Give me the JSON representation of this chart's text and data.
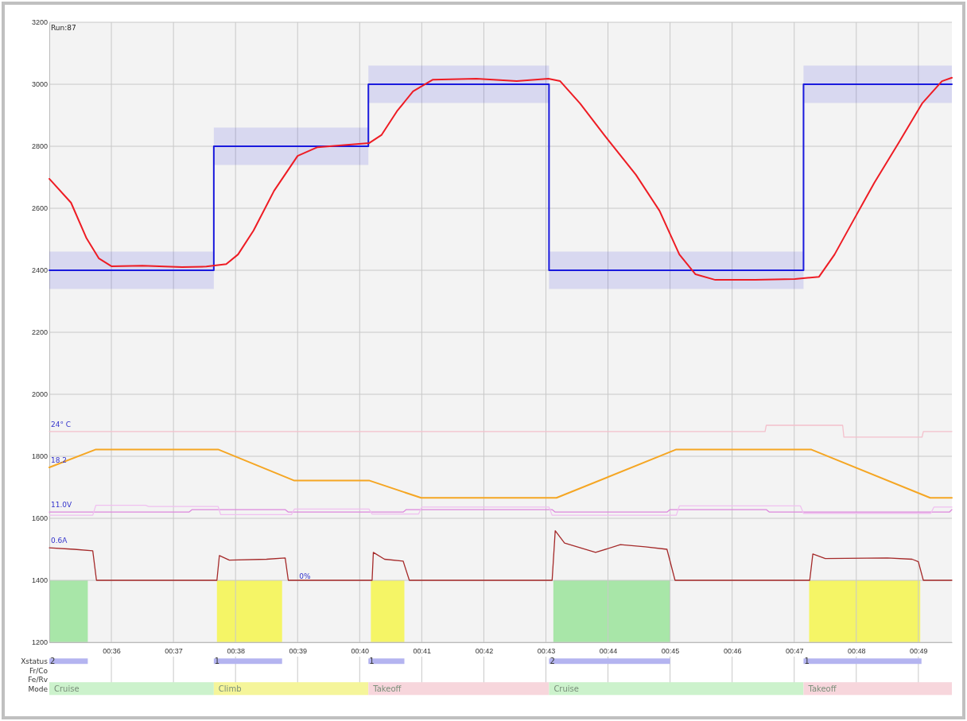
{
  "chart_data": [
    {
      "type": "line",
      "xlim": [
        35,
        49.54
      ],
      "xticks": [
        {
          "value": 36,
          "label": "00:36"
        },
        {
          "value": 37,
          "label": "00:37"
        },
        {
          "value": 38,
          "label": "00:38"
        },
        {
          "value": 39,
          "label": "00:39"
        },
        {
          "value": 40,
          "label": "00:40"
        },
        {
          "value": 41,
          "label": "00:41"
        },
        {
          "value": 42,
          "label": "00:42"
        },
        {
          "value": 43,
          "label": "00:43"
        },
        {
          "value": 44,
          "label": "00:44"
        },
        {
          "value": 45,
          "label": "00:45"
        },
        {
          "value": 46,
          "label": "00:46"
        },
        {
          "value": 47,
          "label": "00:47"
        },
        {
          "value": 48,
          "label": "00:48"
        },
        {
          "value": 49,
          "label": "00:49"
        }
      ],
      "ylim": [
        1200,
        3200
      ],
      "yticks": [
        1200,
        1400,
        1600,
        1800,
        2000,
        2200,
        2400,
        2600,
        2800,
        3000,
        3200
      ],
      "grid": true,
      "series": [
        {
          "type": "step",
          "color": "#1a1add",
          "x": [
            35,
            37.65,
            40.14,
            43.05,
            47.15,
            49.54
          ],
          "values": [
            2400,
            2800,
            3000,
            2400,
            3000,
            3000
          ],
          "lower": [
            2340,
            2740,
            2940,
            2340,
            2940,
            2940
          ],
          "upper": [
            2460,
            2860,
            3060,
            2460,
            3060,
            3060
          ]
        },
        {
          "color": "#ee1c24",
          "x": [
            35.0,
            35.35,
            35.6,
            35.8,
            36.0,
            36.5,
            37.14,
            37.53,
            37.85,
            38.04,
            38.29,
            38.62,
            39.0,
            39.32,
            39.83,
            40.15,
            40.35,
            40.6,
            40.86,
            41.18,
            41.88,
            42.53,
            43.04,
            43.23,
            43.55,
            43.94,
            44.45,
            44.83,
            45.15,
            45.41,
            45.73,
            46.37,
            47.01,
            47.4,
            47.65,
            47.97,
            48.29,
            48.68,
            49.06,
            49.38,
            49.54
          ],
          "values": [
            2695,
            2618,
            2503,
            2438,
            2413,
            2415,
            2410,
            2412,
            2420,
            2451,
            2528,
            2656,
            2769,
            2797,
            2805,
            2810,
            2836,
            2913,
            2977,
            3015,
            3018,
            3010,
            3018,
            3010,
            2938,
            2836,
            2708,
            2592,
            2451,
            2387,
            2369,
            2369,
            2372,
            2379,
            2451,
            2567,
            2682,
            2810,
            2938,
            3010,
            3021
          ]
        },
        {
          "name": "24° C",
          "color": "#f4c0cc",
          "x": [
            35,
            46.53,
            46.55,
            47.78,
            47.8,
            49.06,
            49.08,
            49.54
          ],
          "values": [
            1880,
            1880,
            1900,
            1900,
            1862,
            1862,
            1880,
            1880
          ]
        },
        {
          "name": "18.2",
          "color": "#f5a623",
          "x": [
            35,
            35.75,
            37.72,
            38.94,
            40.15,
            40.99,
            43.17,
            45.1,
            47.27,
            49.19,
            49.54
          ],
          "values": [
            1764,
            1822,
            1822,
            1722,
            1722,
            1666,
            1666,
            1822,
            1822,
            1666,
            1666
          ]
        },
        {
          "name": "11.0V",
          "color": "#dd88dd",
          "x": [
            35,
            37.25,
            37.3,
            38.8,
            38.85,
            40.7,
            40.75,
            43.1,
            43.15,
            44.95,
            45.0,
            46.55,
            46.6,
            49.5,
            49.54
          ],
          "values": [
            1620,
            1620,
            1628,
            1628,
            1620,
            1620,
            1628,
            1628,
            1620,
            1620,
            1628,
            1628,
            1620,
            1620,
            1628
          ]
        },
        {
          "color": "#f0c0f0",
          "x": [
            35,
            35.7,
            35.75,
            36.55,
            36.6,
            37.72,
            37.76,
            38.9,
            38.95,
            40.15,
            40.2,
            40.95,
            41.0,
            43.05,
            43.1,
            45.1,
            45.15,
            47.1,
            47.15,
            49.2,
            49.25,
            49.54
          ],
          "values": [
            1610,
            1610,
            1642,
            1642,
            1638,
            1638,
            1612,
            1612,
            1630,
            1630,
            1614,
            1614,
            1636,
            1636,
            1610,
            1610,
            1640,
            1640,
            1616,
            1616,
            1636,
            1636
          ]
        },
        {
          "name": "0.6A",
          "color": "#a52a2a",
          "x": [
            35,
            35.4,
            35.7,
            35.76,
            37.7,
            37.74,
            37.9,
            38.5,
            38.8,
            38.85,
            40.2,
            40.22,
            40.4,
            40.7,
            40.8,
            43.1,
            43.15,
            43.3,
            43.8,
            44.2,
            44.6,
            44.95,
            45.08,
            47.25,
            47.3,
            47.5,
            48.5,
            48.9,
            49.0,
            49.08,
            49.54
          ],
          "values": [
            1505,
            1500,
            1495,
            1400,
            1400,
            1480,
            1465,
            1468,
            1472,
            1400,
            1400,
            1490,
            1468,
            1462,
            1400,
            1400,
            1560,
            1520,
            1490,
            1515,
            1508,
            1500,
            1400,
            1400,
            1485,
            1470,
            1472,
            1468,
            1460,
            1400,
            1400
          ]
        }
      ],
      "bands": [
        {
          "axis": "x",
          "from": 35.0,
          "to": 35.62,
          "color": "#a8e6a8"
        },
        {
          "axis": "x",
          "from": 37.7,
          "to": 38.75,
          "color": "#f5f566"
        },
        {
          "axis": "x",
          "from": 40.18,
          "to": 40.72,
          "color": "#f5f566"
        },
        {
          "axis": "x",
          "from": 43.12,
          "to": 45.0,
          "color": "#a8e6a8"
        },
        {
          "axis": "x",
          "from": 47.24,
          "to": 49.03,
          "color": "#f5f566"
        }
      ],
      "annotations": [
        "Run:87",
        {
          "text": "0%",
          "x": 39.0,
          "y": 1400
        }
      ]
    },
    {
      "type": "bar",
      "orientation": "horizontal",
      "categories": [
        "Xstatus",
        "Fr/Co",
        "Fe/Rv",
        "Mode"
      ],
      "xlim": [
        35,
        49.54
      ],
      "xticks": [
        36,
        37,
        38,
        39,
        40,
        41,
        42,
        43,
        44,
        45,
        46,
        47,
        48,
        49
      ],
      "tick_labels": "y",
      "grid": "x",
      "series": [
        {
          "values": [
            0.62,
            null,
            null,
            2.65
          ],
          "base": [
            35.0,
            null,
            null,
            35.0
          ],
          "colors": [
            "#b4b4f0",
            null,
            null,
            "#ccf2cc"
          ]
        },
        {
          "values": [
            1.1,
            null,
            null,
            2.49
          ],
          "base": [
            37.65,
            null,
            null,
            37.65
          ],
          "colors": [
            "#b4b4f0",
            null,
            null,
            "#f5f59a"
          ]
        },
        {
          "values": [
            0.58,
            null,
            null,
            2.91
          ],
          "base": [
            40.14,
            null,
            null,
            40.14
          ],
          "colors": [
            "#b4b4f0",
            null,
            null,
            "#f7d6dc"
          ]
        },
        {
          "values": [
            1.95,
            null,
            null,
            4.1
          ],
          "base": [
            43.05,
            null,
            null,
            43.05
          ],
          "colors": [
            "#b4b4f0",
            null,
            null,
            "#ccf2cc"
          ]
        },
        {
          "values": [
            1.9,
            null,
            null,
            2.39
          ],
          "base": [
            47.15,
            null,
            null,
            47.15
          ],
          "colors": [
            "#b4b4f0",
            null,
            null,
            "#f7d6dc"
          ]
        }
      ],
      "annotations": [
        {
          "text": "2",
          "x": 35.0,
          "y": "Xstatus"
        },
        {
          "text": "1",
          "x": 37.65,
          "y": "Xstatus"
        },
        {
          "text": "1",
          "x": 40.14,
          "y": "Xstatus"
        },
        {
          "text": "2",
          "x": 43.05,
          "y": "Xstatus"
        },
        {
          "text": "1",
          "x": 47.15,
          "y": "Xstatus"
        },
        {
          "text": "Cruise",
          "x": 35.0,
          "y": "Mode"
        },
        {
          "text": "Climb",
          "x": 37.65,
          "y": "Mode"
        },
        {
          "text": "Takeoff",
          "x": 40.14,
          "y": "Mode"
        },
        {
          "text": "Cruise",
          "x": 43.05,
          "y": "Mode"
        },
        {
          "text": "Takeoff",
          "x": 47.15,
          "y": "Mode"
        }
      ]
    }
  ]
}
